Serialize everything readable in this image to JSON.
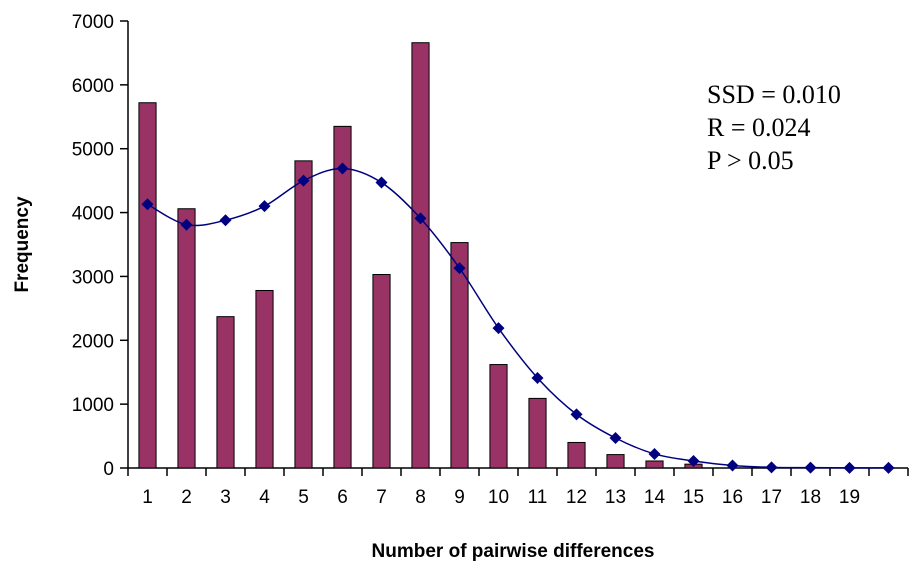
{
  "chart_data": {
    "type": "bar",
    "categories": [
      "1",
      "2",
      "3",
      "4",
      "5",
      "6",
      "7",
      "8",
      "9",
      "10",
      "11",
      "12",
      "13",
      "14",
      "15",
      "16",
      "17",
      "18",
      "19",
      ""
    ],
    "series": [
      {
        "type": "bar",
        "values": [
          5720,
          4060,
          2370,
          2780,
          4810,
          5350,
          3030,
          6660,
          3530,
          1620,
          1090,
          400,
          210,
          110,
          60,
          0,
          0,
          0,
          0,
          0
        ],
        "color": "#993366"
      },
      {
        "type": "line",
        "values": [
          4130,
          3810,
          3880,
          4100,
          4500,
          4690,
          4470,
          3910,
          3130,
          2190,
          1410,
          840,
          470,
          220,
          110,
          40,
          10,
          5,
          2,
          1
        ],
        "color": "#000080",
        "marker": "diamond"
      }
    ],
    "xlabel": "Number of  pairwise differences",
    "ylabel": "Frequency",
    "ylim": [
      0,
      7000
    ],
    "yticks": [
      "0",
      "1000",
      "2000",
      "3000",
      "4000",
      "5000",
      "6000",
      "7000"
    ],
    "grid": false,
    "annotations": [
      "SSD = 0.010",
      "R = 0.024",
      "P > 0.05"
    ]
  }
}
